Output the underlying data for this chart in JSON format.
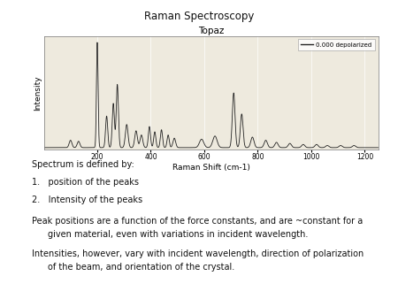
{
  "title": "Raman Spectroscopy",
  "chart_title": "Topaz",
  "xlabel": "Raman Shift (cm-1)",
  "ylabel": "Intensity",
  "legend_label": "0.000 depolarized",
  "bg_color": "#eeeade",
  "line_color": "#222222",
  "xmin": 0,
  "xmax": 1250,
  "xticks": [
    200,
    400,
    600,
    800,
    1000,
    1200
  ],
  "peak_positions": [
    100,
    130,
    200,
    235,
    260,
    275,
    310,
    345,
    365,
    395,
    415,
    440,
    465,
    488,
    590,
    640,
    710,
    740,
    780,
    830,
    870,
    920,
    970,
    1020,
    1060,
    1110,
    1160
  ],
  "peak_heights": [
    0.07,
    0.06,
    1.0,
    0.3,
    0.42,
    0.6,
    0.22,
    0.16,
    0.12,
    0.2,
    0.15,
    0.17,
    0.12,
    0.09,
    0.08,
    0.11,
    0.52,
    0.32,
    0.1,
    0.07,
    0.05,
    0.04,
    0.03,
    0.03,
    0.02,
    0.02,
    0.02
  ],
  "peak_widths": [
    5,
    5,
    3,
    4,
    4,
    4,
    5,
    5,
    5,
    4,
    4,
    4,
    4,
    5,
    8,
    8,
    5,
    5,
    6,
    6,
    6,
    6,
    6,
    6,
    6,
    6,
    6
  ]
}
